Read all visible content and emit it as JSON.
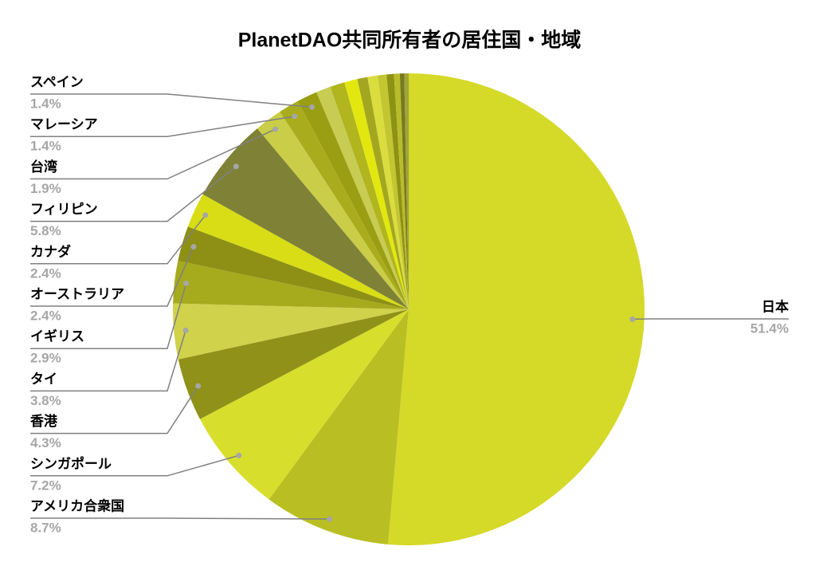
{
  "chart_data": {
    "type": "pie",
    "title": "PlanetDAO共同所有者の居住国・地域",
    "categories": [
      "日本",
      "アメリカ合衆国",
      "シンガポール",
      "香港",
      "タイ",
      "イギリス",
      "オーストラリア",
      "カナダ",
      "フィリピン",
      "台湾",
      "マレーシア",
      "スペイン",
      null,
      null,
      null,
      null,
      null,
      null,
      null,
      null,
      null,
      null
    ],
    "values": [
      51.4,
      8.7,
      7.2,
      4.3,
      3.8,
      2.9,
      2.4,
      2.4,
      5.8,
      1.9,
      1.4,
      1.4,
      1.0,
      1.0,
      0.9,
      0.7,
      0.7,
      0.6,
      0.5,
      0.4,
      0.3,
      0.3
    ],
    "value_labels": [
      "51.4%",
      "8.7%",
      "7.2%",
      "4.3%",
      "3.8%",
      "2.9%",
      "2.4%",
      "2.4%",
      "5.8%",
      "1.9%",
      "1.4%",
      "1.4%",
      null,
      null,
      null,
      null,
      null,
      null,
      null,
      null,
      null,
      null
    ],
    "colors": [
      "#d5d928",
      "#b9bf22",
      "#d8de2c",
      "#8f9119",
      "#cfd24a",
      "#a6aa1d",
      "#8d9015",
      "#d8dd16",
      "#7f8236",
      "#cacd47",
      "#a9ad1d",
      "#9a9e12",
      "#c8cc52",
      "#b1b51e",
      "#e2e80f",
      "#a3a720",
      "#d9dd3e",
      "#c2c630",
      "#8e9213",
      "#b8bc2a",
      "#777a1c",
      "#a0a43a"
    ]
  }
}
